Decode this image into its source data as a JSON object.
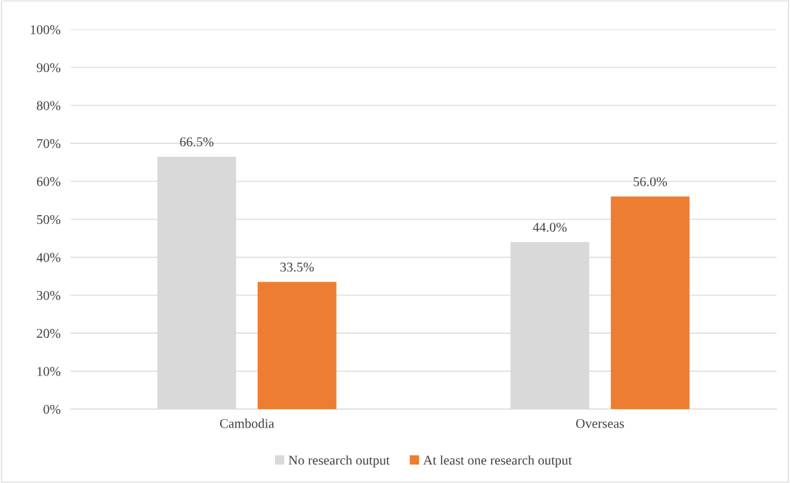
{
  "chart_data": {
    "type": "bar",
    "categories": [
      "Cambodia",
      "Overseas"
    ],
    "series": [
      {
        "name": "No research output",
        "color": "#d9d9d9",
        "values": [
          66.5,
          44.0
        ],
        "value_labels": [
          "66.5%",
          "44.0%"
        ]
      },
      {
        "name": "At least one research output",
        "color": "#ed7d31",
        "values": [
          33.5,
          56.0
        ],
        "value_labels": [
          "33.5%",
          "56.0%"
        ]
      }
    ],
    "ylim": [
      0,
      100
    ],
    "yticks": [
      {
        "value": 0,
        "label": "0%"
      },
      {
        "value": 10,
        "label": "10%"
      },
      {
        "value": 20,
        "label": "20%"
      },
      {
        "value": 30,
        "label": "30%"
      },
      {
        "value": 40,
        "label": "40%"
      },
      {
        "value": 50,
        "label": "50%"
      },
      {
        "value": 60,
        "label": "60%"
      },
      {
        "value": 70,
        "label": "70%"
      },
      {
        "value": 80,
        "label": "80%"
      },
      {
        "value": 90,
        "label": "90%"
      },
      {
        "value": 100,
        "label": "100%"
      }
    ],
    "grid": "y",
    "legend": "bottom"
  }
}
